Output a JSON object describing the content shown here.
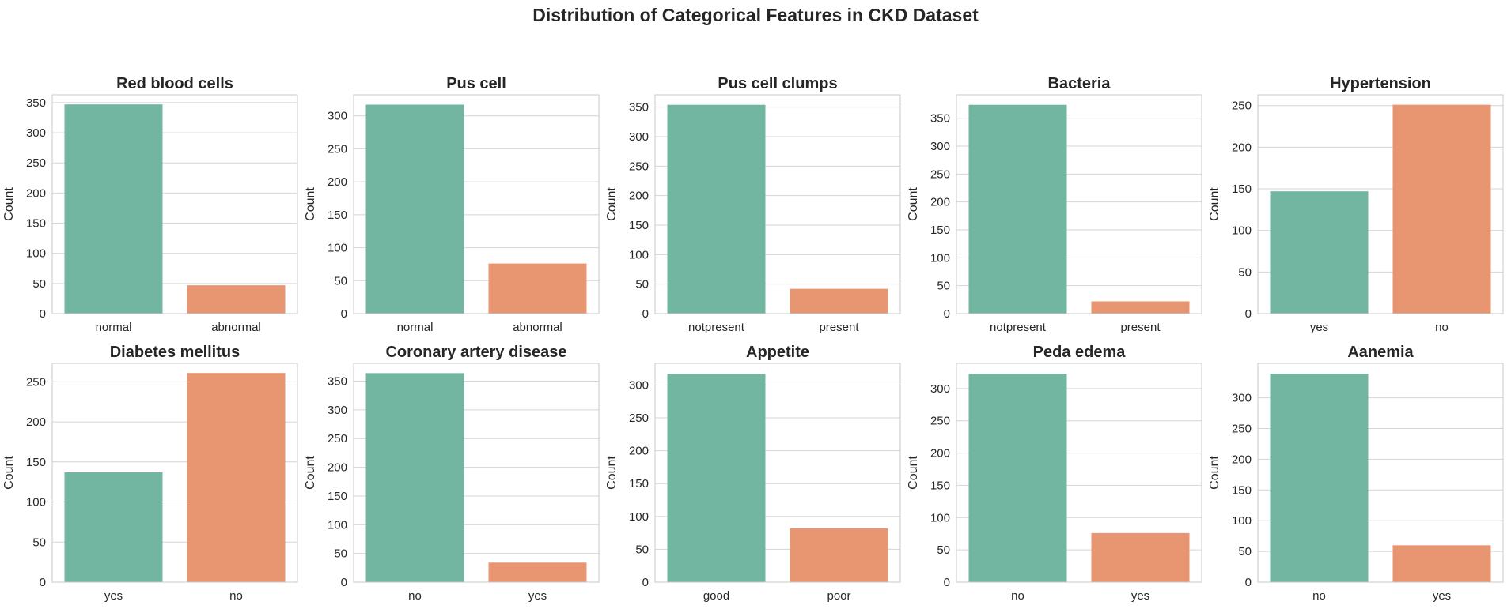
{
  "figure": {
    "title": "Distribution of Categorical Features in CKD Dataset"
  },
  "colors": {
    "bar_primary": "#72b5a0",
    "bar_secondary": "#e89672",
    "grid": "#d4d4d4",
    "frame": "#c8c8c8",
    "text": "#262626"
  },
  "chart_data": [
    {
      "type": "bar",
      "title": "Red blood cells",
      "ylabel": "Count",
      "xlabel": "",
      "categories": [
        "normal",
        "abnormal"
      ],
      "values": [
        347,
        47
      ],
      "ylim": [
        0,
        363
      ],
      "yticks": [
        0,
        50,
        100,
        150,
        200,
        250,
        300,
        350
      ],
      "grid": "y"
    },
    {
      "type": "bar",
      "title": "Pus cell",
      "ylabel": "Count",
      "xlabel": "",
      "categories": [
        "normal",
        "abnormal"
      ],
      "values": [
        317,
        76
      ],
      "ylim": [
        0,
        332
      ],
      "yticks": [
        0,
        50,
        100,
        150,
        200,
        250,
        300
      ],
      "grid": "y"
    },
    {
      "type": "bar",
      "title": "Pus cell clumps",
      "ylabel": "Count",
      "xlabel": "",
      "categories": [
        "notpresent",
        "present"
      ],
      "values": [
        354,
        42
      ],
      "ylim": [
        0,
        371
      ],
      "yticks": [
        0,
        50,
        100,
        150,
        200,
        250,
        300,
        350
      ],
      "grid": "y"
    },
    {
      "type": "bar",
      "title": "Bacteria",
      "ylabel": "Count",
      "xlabel": "",
      "categories": [
        "notpresent",
        "present"
      ],
      "values": [
        374,
        22
      ],
      "ylim": [
        0,
        392
      ],
      "yticks": [
        0,
        50,
        100,
        150,
        200,
        250,
        300,
        350
      ],
      "grid": "y"
    },
    {
      "type": "bar",
      "title": "Hypertension",
      "ylabel": "Count",
      "xlabel": "",
      "categories": [
        "yes",
        "no"
      ],
      "values": [
        147,
        251
      ],
      "ylim": [
        0,
        263
      ],
      "yticks": [
        0,
        50,
        100,
        150,
        200,
        250
      ],
      "grid": "y"
    },
    {
      "type": "bar",
      "title": "Diabetes mellitus",
      "ylabel": "Count",
      "xlabel": "",
      "categories": [
        "yes",
        "no"
      ],
      "values": [
        137,
        261
      ],
      "ylim": [
        0,
        273
      ],
      "yticks": [
        0,
        50,
        100,
        150,
        200,
        250
      ],
      "grid": "y"
    },
    {
      "type": "bar",
      "title": "Coronary artery disease",
      "ylabel": "Count",
      "xlabel": "",
      "categories": [
        "no",
        "yes"
      ],
      "values": [
        364,
        34
      ],
      "ylim": [
        0,
        381
      ],
      "yticks": [
        0,
        50,
        100,
        150,
        200,
        250,
        300,
        350
      ],
      "grid": "y"
    },
    {
      "type": "bar",
      "title": "Appetite",
      "ylabel": "Count",
      "xlabel": "",
      "categories": [
        "good",
        "poor"
      ],
      "values": [
        317,
        82
      ],
      "ylim": [
        0,
        333
      ],
      "yticks": [
        0,
        50,
        100,
        150,
        200,
        250,
        300
      ],
      "grid": "y"
    },
    {
      "type": "bar",
      "title": "Peda edema",
      "ylabel": "Count",
      "xlabel": "",
      "categories": [
        "no",
        "yes"
      ],
      "values": [
        323,
        76
      ],
      "ylim": [
        0,
        339
      ],
      "yticks": [
        0,
        50,
        100,
        150,
        200,
        250,
        300
      ],
      "grid": "y"
    },
    {
      "type": "bar",
      "title": "Aanemia",
      "ylabel": "Count",
      "xlabel": "",
      "categories": [
        "no",
        "yes"
      ],
      "values": [
        339,
        60
      ],
      "ylim": [
        0,
        356
      ],
      "yticks": [
        0,
        50,
        100,
        150,
        200,
        250,
        300
      ],
      "grid": "y"
    }
  ]
}
